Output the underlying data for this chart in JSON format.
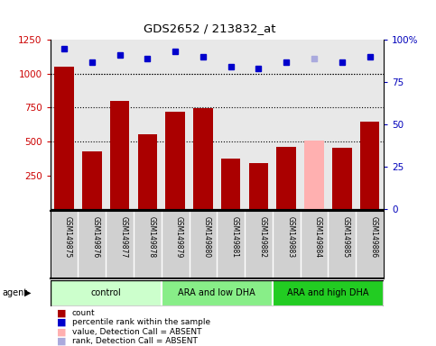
{
  "title": "GDS2652 / 213832_at",
  "samples": [
    "GSM149875",
    "GSM149876",
    "GSM149877",
    "GSM149878",
    "GSM149879",
    "GSM149880",
    "GSM149881",
    "GSM149882",
    "GSM149883",
    "GSM149884",
    "GSM149885",
    "GSM149886"
  ],
  "bar_values": [
    1055,
    430,
    800,
    555,
    720,
    745,
    375,
    340,
    460,
    505,
    455,
    645
  ],
  "bar_colors": [
    "#aa0000",
    "#aa0000",
    "#aa0000",
    "#aa0000",
    "#aa0000",
    "#aa0000",
    "#aa0000",
    "#aa0000",
    "#aa0000",
    "#ffb0b0",
    "#aa0000",
    "#aa0000"
  ],
  "dot_values": [
    95,
    87,
    91,
    89,
    93,
    90,
    84,
    83,
    87,
    89,
    87,
    90
  ],
  "dot_colors": [
    "#0000cc",
    "#0000cc",
    "#0000cc",
    "#0000cc",
    "#0000cc",
    "#0000cc",
    "#0000cc",
    "#0000cc",
    "#0000cc",
    "#aaaadd",
    "#0000cc",
    "#0000cc"
  ],
  "groups": [
    {
      "label": "control",
      "start": 0,
      "end": 3,
      "color": "#ccffcc"
    },
    {
      "label": "ARA and low DHA",
      "start": 4,
      "end": 7,
      "color": "#88ee88"
    },
    {
      "label": "ARA and high DHA",
      "start": 8,
      "end": 11,
      "color": "#22cc22"
    }
  ],
  "ylim_left": [
    0,
    1250
  ],
  "ylim_right": [
    0,
    100
  ],
  "yticks_left": [
    250,
    500,
    750,
    1000,
    1250
  ],
  "yticks_right": [
    0,
    25,
    50,
    75,
    100
  ],
  "ylabel_left_color": "#cc0000",
  "ylabel_right_color": "#0000bb",
  "grid_yticks": [
    500,
    750,
    1000
  ],
  "plot_bg": "#e8e8e8",
  "sample_bg": "#d0d0d0",
  "legend_items": [
    {
      "label": "count",
      "color": "#aa0000"
    },
    {
      "label": "percentile rank within the sample",
      "color": "#0000cc"
    },
    {
      "label": "value, Detection Call = ABSENT",
      "color": "#ffb0b0"
    },
    {
      "label": "rank, Detection Call = ABSENT",
      "color": "#aaaadd"
    }
  ]
}
